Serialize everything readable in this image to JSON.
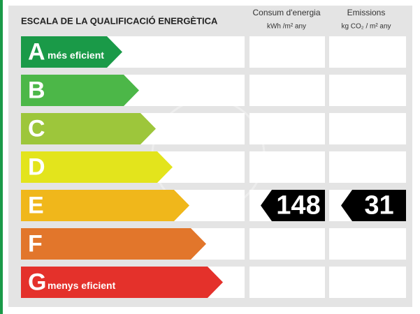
{
  "header": {
    "title": "ESCALA DE LA QUALIFICACIÓ ENERGÈTICA"
  },
  "columns": [
    {
      "title": "Consum d'energia",
      "unit": "kWh /m² any"
    },
    {
      "title": "Emissions",
      "unit": "kg CO₂ / m² any"
    }
  ],
  "rows": [
    {
      "letter": "A",
      "label": "més eficient",
      "color": "#1a9a48"
    },
    {
      "letter": "B",
      "label": null,
      "color": "#4cb748"
    },
    {
      "letter": "C",
      "label": null,
      "color": "#9dc63b"
    },
    {
      "letter": "D",
      "label": null,
      "color": "#e3e41c"
    },
    {
      "letter": "E",
      "label": null,
      "color": "#f0b71b"
    },
    {
      "letter": "F",
      "label": null,
      "color": "#e2762b"
    },
    {
      "letter": "G",
      "label": "menys eficient",
      "color": "#e4312b"
    }
  ],
  "rating": {
    "letter": "E",
    "consumption": 148,
    "emissions": 31
  }
}
